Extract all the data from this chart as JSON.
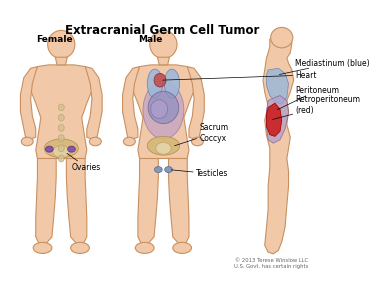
{
  "title": "Extracranial Germ Cell Tumor",
  "title_fontsize": 8.5,
  "title_fontweight": "bold",
  "bg_color": "#ffffff",
  "skin_color": "#f2c9a8",
  "skin_edge_color": "#c89060",
  "skin_lw": 0.8,
  "labels": {
    "female": "Female",
    "male": "Male",
    "mediastinum": "Mediastinum (blue)",
    "heart": "Heart",
    "peritoneum": "Peritoneum",
    "retroperitoneum": "Retroperitoneum\n(red)",
    "sacrum_coccyx": "Sacrum\nCoccyx",
    "ovaries": "Ovaries",
    "testicles": "Testicles"
  },
  "label_fontsize": 5.5,
  "copyright": "© 2013 Terese Winslow LLC\nU.S. Govt. has certain rights",
  "copyright_fontsize": 3.8,
  "lung_blue": "#a0b8d8",
  "lung_blue_dark": "#6888b0",
  "heart_red": "#c05050",
  "peritoneum_purple": "#c0a0c8",
  "peritoneum_dark": "#907098",
  "abdom_blue": "#9898c8",
  "abdom_tan": "#d4b878",
  "ovary_purple": "#8855aa",
  "testis_blue": "#8898b8",
  "retro_red": "#cc3030",
  "retro_blue": "#7090c0",
  "spine_tan": "#d4c090"
}
